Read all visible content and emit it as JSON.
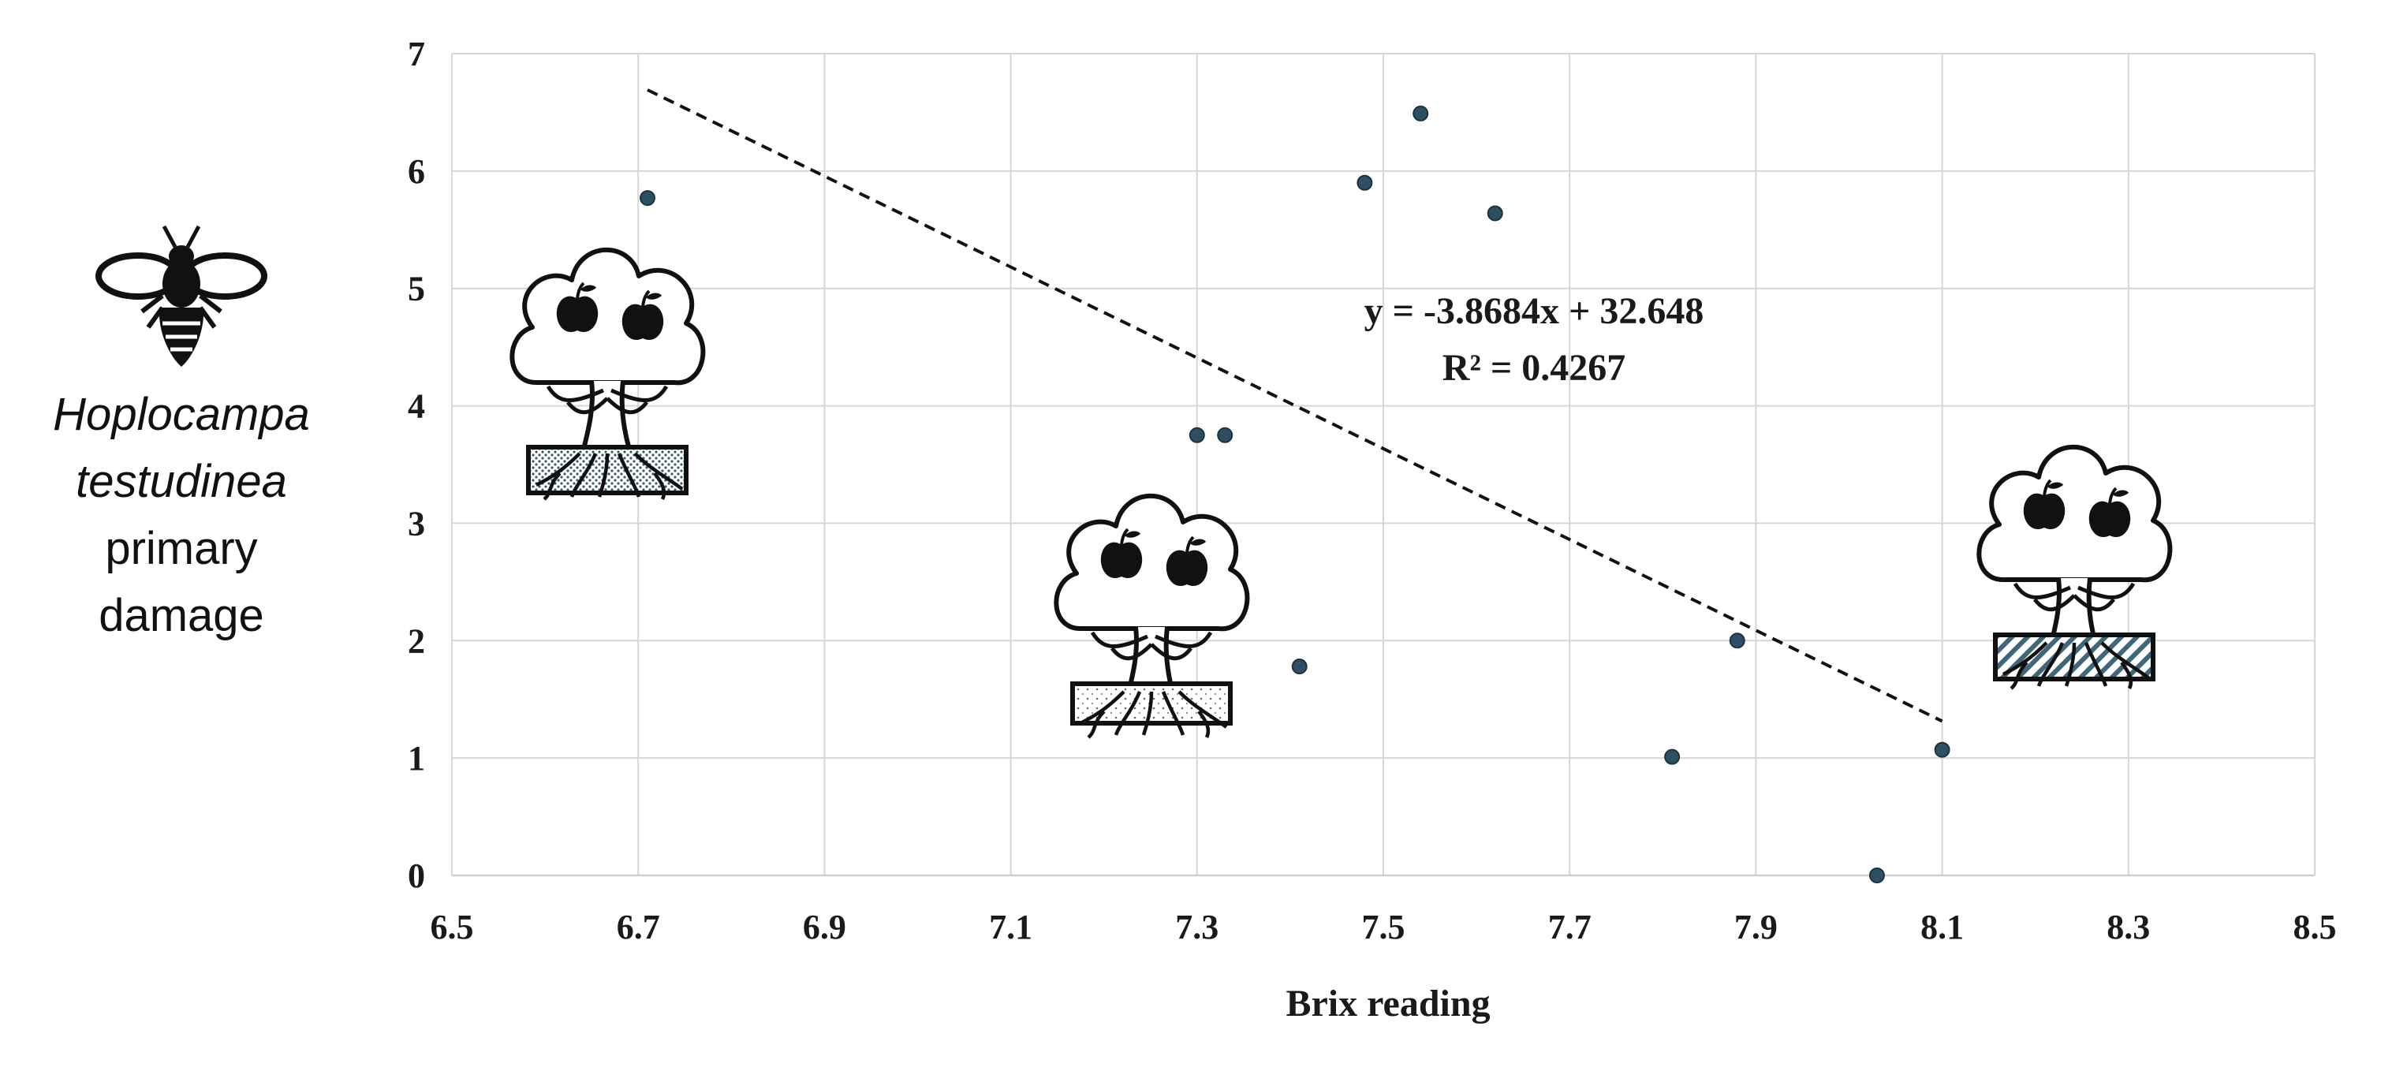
{
  "chart_data": {
    "type": "scatter",
    "title": "",
    "xlabel": "Brix reading",
    "ylabel_lines": [
      {
        "text": "Hoplocampa",
        "italic": true
      },
      {
        "text": "testudinea",
        "italic": true
      },
      {
        "text": "primary",
        "italic": false
      },
      {
        "text": "damage",
        "italic": false
      }
    ],
    "xlim": [
      6.5,
      8.5
    ],
    "ylim": [
      0,
      7
    ],
    "x_ticks": [
      "6.5",
      "6.7",
      "6.9",
      "7.1",
      "7.3",
      "7.5",
      "7.7",
      "7.9",
      "8.1",
      "8.3",
      "8.5"
    ],
    "y_ticks": [
      "0",
      "1",
      "2",
      "3",
      "4",
      "5",
      "6",
      "7"
    ],
    "grid": true,
    "points": [
      {
        "x": 6.71,
        "y": 5.77
      },
      {
        "x": 7.3,
        "y": 3.75
      },
      {
        "x": 7.33,
        "y": 3.75
      },
      {
        "x": 7.41,
        "y": 1.78
      },
      {
        "x": 7.48,
        "y": 5.9
      },
      {
        "x": 7.54,
        "y": 6.49
      },
      {
        "x": 7.62,
        "y": 5.64
      },
      {
        "x": 7.81,
        "y": 1.01
      },
      {
        "x": 7.88,
        "y": 2.0
      },
      {
        "x": 8.03,
        "y": 0.0
      },
      {
        "x": 8.1,
        "y": 1.07
      }
    ],
    "trendline": {
      "slope": -3.8684,
      "intercept": 32.648,
      "x_start": 6.71,
      "x_end": 8.1,
      "style": "dashed"
    },
    "annotations": {
      "equation": "y = -3.8684x + 32.648",
      "r_squared": "R² = 0.4267"
    },
    "point_color": "#2e4f63"
  },
  "icons": {
    "insect": "sawfly-icon",
    "trees": [
      "apple-tree-dotted-soil-icon",
      "apple-tree-sparse-soil-icon",
      "apple-tree-hatched-soil-icon"
    ]
  }
}
